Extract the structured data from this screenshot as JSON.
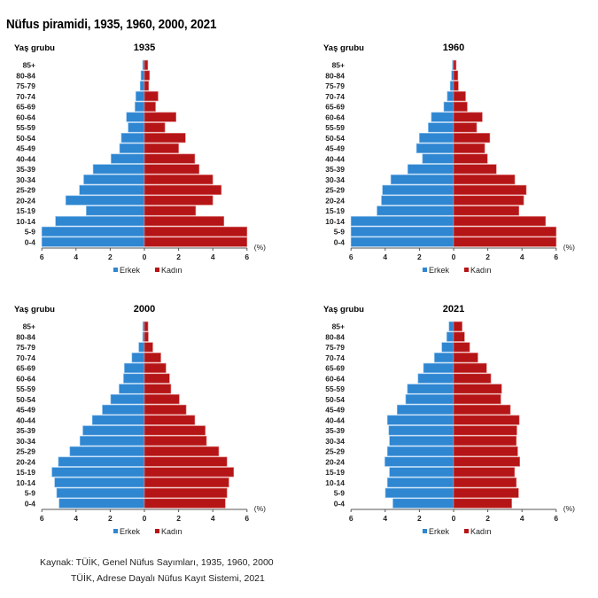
{
  "title": "Nüfus piramidi, 1935, 1960, 2000, 2021",
  "source": {
    "line1": "Kaynak: TÜİK, Genel Nüfus Sayımları, 1935, 1960, 2000",
    "line2": "TÜİK, Adrese Dayalı Nüfus Kayıt Sistemi, 2021"
  },
  "colors": {
    "male": "#2f86d1",
    "female": "#b51516",
    "axis": "#555555"
  },
  "chart_data": [
    {
      "type": "bar",
      "title": "1935",
      "ylabel": "Yaş grubu",
      "xlabel": "(%)",
      "xlim": [
        -6,
        6
      ],
      "xticks": [
        "6",
        "4",
        "2",
        "0",
        "2",
        "4",
        "6"
      ],
      "legend": {
        "position": "bottom",
        "entries": [
          "Erkek",
          "Kadın"
        ]
      },
      "categories": [
        "85+",
        "80-84",
        "75-79",
        "70-74",
        "65-69",
        "60-64",
        "55-59",
        "50-54",
        "45-49",
        "40-44",
        "35-39",
        "30-34",
        "25-29",
        "20-24",
        "15-19",
        "10-14",
        "5-9",
        "0-4"
      ],
      "series": [
        {
          "name": "Erkek",
          "values": [
            0.1,
            0.2,
            0.25,
            0.5,
            0.55,
            1.05,
            0.95,
            1.35,
            1.45,
            1.95,
            3.0,
            3.55,
            3.8,
            4.6,
            3.4,
            5.2,
            6.0,
            6.0
          ]
        },
        {
          "name": "Kadın",
          "values": [
            0.2,
            0.3,
            0.25,
            0.8,
            0.65,
            1.85,
            1.2,
            2.4,
            2.0,
            2.95,
            3.2,
            4.0,
            4.5,
            4.0,
            3.0,
            4.65,
            6.0,
            6.0
          ]
        }
      ]
    },
    {
      "type": "bar",
      "title": "1960",
      "ylabel": "Yaş grubu",
      "xlabel": "(%)",
      "xlim": [
        -6,
        6
      ],
      "xticks": [
        "6",
        "4",
        "2",
        "0",
        "2",
        "4",
        "6"
      ],
      "legend": {
        "position": "bottom",
        "entries": [
          "Erkek",
          "Kadın"
        ]
      },
      "categories": [
        "85+",
        "80-84",
        "75-79",
        "70-74",
        "65-69",
        "60-64",
        "55-59",
        "50-54",
        "45-49",
        "40-44",
        "35-39",
        "30-34",
        "25-29",
        "20-24",
        "15-19",
        "10-14",
        "5-9",
        "0-4"
      ],
      "series": [
        {
          "name": "Erkek",
          "values": [
            0.07,
            0.12,
            0.2,
            0.37,
            0.57,
            1.3,
            1.48,
            2.0,
            2.17,
            1.82,
            2.68,
            3.67,
            4.16,
            4.22,
            4.48,
            6.0,
            6.0,
            6.0
          ]
        },
        {
          "name": "Kadın",
          "values": [
            0.15,
            0.25,
            0.28,
            0.7,
            0.8,
            1.68,
            1.35,
            2.12,
            1.82,
            1.98,
            2.5,
            3.58,
            4.25,
            4.1,
            3.82,
            5.38,
            6.0,
            6.0
          ]
        }
      ]
    },
    {
      "type": "bar",
      "title": "2000",
      "ylabel": "Yaş grubu",
      "xlabel": "(%)",
      "xlim": [
        -6,
        6
      ],
      "xticks": [
        "6",
        "4",
        "2",
        "0",
        "2",
        "4",
        "6"
      ],
      "legend": {
        "position": "bottom",
        "entries": [
          "Erkek",
          "Kadın"
        ]
      },
      "categories": [
        "85+",
        "80-84",
        "75-79",
        "70-74",
        "65-69",
        "60-64",
        "55-59",
        "50-54",
        "45-49",
        "40-44",
        "35-39",
        "30-34",
        "25-29",
        "20-24",
        "15-19",
        "10-14",
        "5-9",
        "0-4"
      ],
      "series": [
        {
          "name": "Erkek",
          "values": [
            0.09,
            0.1,
            0.33,
            0.73,
            1.17,
            1.22,
            1.48,
            1.97,
            2.46,
            3.05,
            3.6,
            3.77,
            4.36,
            5.03,
            5.41,
            5.25,
            5.13,
            4.99
          ]
        },
        {
          "name": "Kadın",
          "values": [
            0.21,
            0.23,
            0.49,
            0.96,
            1.26,
            1.47,
            1.55,
            2.04,
            2.44,
            2.95,
            3.56,
            3.63,
            4.35,
            4.83,
            5.22,
            4.94,
            4.83,
            4.73
          ]
        }
      ]
    },
    {
      "type": "bar",
      "title": "2021",
      "ylabel": "Yaş grubu",
      "xlabel": "(%)",
      "xlim": [
        -6,
        6
      ],
      "xticks": [
        "6",
        "4",
        "2",
        "0",
        "2",
        "4",
        "6"
      ],
      "legend": {
        "position": "bottom",
        "entries": [
          "Erkek",
          "Kadın"
        ]
      },
      "categories": [
        "85+",
        "80-84",
        "75-79",
        "70-74",
        "65-69",
        "60-64",
        "55-59",
        "50-54",
        "45-49",
        "40-44",
        "35-39",
        "30-34",
        "25-29",
        "20-24",
        "15-19",
        "10-14",
        "5-9",
        "0-4"
      ],
      "series": [
        {
          "name": "Erkek",
          "values": [
            0.27,
            0.4,
            0.69,
            1.12,
            1.76,
            2.08,
            2.7,
            2.8,
            3.3,
            3.87,
            3.79,
            3.75,
            3.87,
            4.02,
            3.75,
            3.87,
            3.99,
            3.55
          ]
        },
        {
          "name": "Kadın",
          "values": [
            0.5,
            0.64,
            0.94,
            1.42,
            1.93,
            2.18,
            2.81,
            2.76,
            3.32,
            3.84,
            3.7,
            3.67,
            3.75,
            3.87,
            3.57,
            3.67,
            3.8,
            3.4
          ]
        }
      ]
    }
  ]
}
